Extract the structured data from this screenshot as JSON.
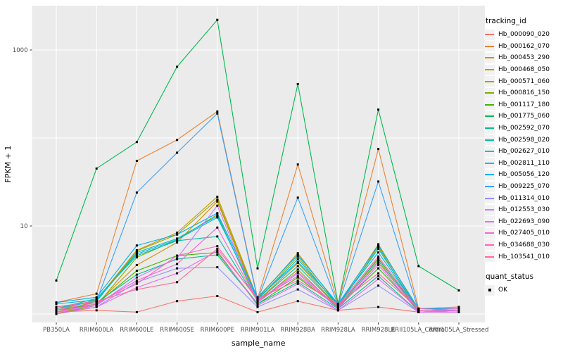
{
  "figure": {
    "axes": {
      "x_label": "sample_name",
      "y_label": "FPKM + 1",
      "y_ticks": [
        {
          "label": "1000",
          "value": 1000
        },
        {
          "label": "10",
          "value": 10
        }
      ],
      "y_gridline_values": [
        1,
        10,
        100,
        1000
      ]
    },
    "legend": {
      "tracking_title": "tracking_id",
      "quant_title": "quant_status",
      "quant_items": [
        {
          "label": "OK",
          "marker": "black-square-icon"
        }
      ]
    },
    "style": {
      "panel_bg": "#EBEBEB",
      "grid_color": "#FFFFFF",
      "key_bg": "#F2F2F2",
      "axis_text_color": "#4D4D4D",
      "title_color": "#000000",
      "point_color": "#000000",
      "tick_color": "#333333"
    }
  },
  "chart_data": {
    "type": "line",
    "x_scale": "categorical",
    "y_scale": "log10",
    "ylim": [
      0.9,
      3000
    ],
    "title": "",
    "xlabel": "sample_name",
    "ylabel": "FPKM + 1",
    "legend_position": "right",
    "grid": true,
    "point_marker": "filled-square",
    "quant_status": "OK",
    "categories": [
      "PB350LA",
      "RRIM600LA",
      "RRIM600LE",
      "RRIM600SE",
      "RRIM600PE",
      "RRIM901LA",
      "RRIM928BA",
      "RRIM928LA",
      "RRIM928LE",
      "RRII105LA_Control",
      "RRII105LA_Stressed"
    ],
    "series": [
      {
        "name": "Hb_000090_020",
        "color": "#F8766D",
        "values": [
          1.05,
          1.1,
          1.05,
          1.4,
          1.6,
          1.05,
          1.4,
          1.1,
          1.2,
          1.05,
          1.1
        ]
      },
      {
        "name": "Hb_000162_070",
        "color": "#EA8331",
        "values": [
          1.35,
          1.7,
          55,
          95,
          200,
          1.5,
          50,
          1.3,
          75,
          1.15,
          1.2
        ]
      },
      {
        "name": "Hb_000453_290",
        "color": "#D89000",
        "values": [
          1.0,
          1.3,
          3.6,
          6.5,
          19,
          1.4,
          3.8,
          1.2,
          4.3,
          1.05,
          1.1
        ]
      },
      {
        "name": "Hb_000468_050",
        "color": "#C09B00",
        "values": [
          1.1,
          1.45,
          5.3,
          8.4,
          21.5,
          1.5,
          4.9,
          1.25,
          6.2,
          1.1,
          1.1
        ]
      },
      {
        "name": "Hb_000571_060",
        "color": "#A3A500",
        "values": [
          1.05,
          1.4,
          5.2,
          8.0,
          20,
          1.45,
          4.5,
          1.2,
          5.8,
          1.05,
          1.05
        ]
      },
      {
        "name": "Hb_000816_150",
        "color": "#7CAE00",
        "values": [
          1.0,
          1.25,
          4.4,
          7.0,
          13.5,
          1.35,
          3.2,
          1.15,
          4.0,
          1.05,
          1.05
        ]
      },
      {
        "name": "Hb_001117_180",
        "color": "#39B600",
        "values": [
          1.1,
          1.3,
          3.1,
          4.6,
          5.0,
          1.3,
          2.6,
          1.2,
          3.3,
          1.1,
          1.1
        ]
      },
      {
        "name": "Hb_001775_060",
        "color": "#00BB4E",
        "values": [
          2.4,
          45,
          90,
          645,
          2200,
          3.3,
          410,
          1.3,
          210,
          3.5,
          1.85
        ]
      },
      {
        "name": "Hb_002592_070",
        "color": "#00C087",
        "values": [
          1.1,
          1.35,
          2.8,
          4.2,
          4.7,
          1.3,
          2.3,
          1.15,
          2.7,
          1.05,
          1.05
        ]
      },
      {
        "name": "Hb_002598_020",
        "color": "#00C1A3",
        "values": [
          1.15,
          1.5,
          4.6,
          6.8,
          7.6,
          1.4,
          3.5,
          1.2,
          4.2,
          1.1,
          1.1
        ]
      },
      {
        "name": "Hb_002627_010",
        "color": "#00BFC4",
        "values": [
          1.2,
          1.4,
          5.0,
          7.2,
          13,
          1.45,
          4.2,
          1.25,
          5.5,
          1.1,
          1.1
        ]
      },
      {
        "name": "Hb_002811_110",
        "color": "#00BAE0",
        "values": [
          1.3,
          1.45,
          4.8,
          7.0,
          12.5,
          1.5,
          3.9,
          1.3,
          5.0,
          1.1,
          1.15
        ]
      },
      {
        "name": "Hb_005056_120",
        "color": "#00B0F6",
        "values": [
          1.35,
          1.55,
          6.0,
          8.0,
          14,
          1.55,
          4.7,
          1.3,
          6.0,
          1.15,
          1.15
        ]
      },
      {
        "name": "Hb_009225_070",
        "color": "#35A2FF",
        "values": [
          1.15,
          1.4,
          24,
          68,
          190,
          1.45,
          21,
          1.25,
          32,
          1.1,
          1.15
        ]
      },
      {
        "name": "Hb_011314_010",
        "color": "#9590FF",
        "values": [
          1.0,
          1.2,
          2.3,
          3.3,
          3.4,
          1.2,
          1.9,
          1.1,
          2.1,
          1.05,
          1.05
        ]
      },
      {
        "name": "Hb_012553_030",
        "color": "#C77CFF",
        "values": [
          1.05,
          1.25,
          2.6,
          4.3,
          17,
          1.35,
          2.9,
          1.15,
          3.6,
          1.05,
          1.1
        ]
      },
      {
        "name": "Hb_022693_090",
        "color": "#E76BF3",
        "values": [
          1.0,
          1.2,
          2.0,
          2.9,
          5.2,
          1.25,
          2.2,
          1.1,
          2.5,
          1.05,
          1.05
        ]
      },
      {
        "name": "Hb_027405_010",
        "color": "#FA62DB",
        "values": [
          1.05,
          1.3,
          2.4,
          3.7,
          9.6,
          1.4,
          3.0,
          1.2,
          3.8,
          1.1,
          1.1
        ]
      },
      {
        "name": "Hb_034688_030",
        "color": "#FF62BC",
        "values": [
          1.1,
          1.35,
          2.2,
          4.6,
          5.9,
          1.45,
          2.7,
          1.25,
          4.5,
          1.1,
          1.15
        ]
      },
      {
        "name": "Hb_103541_010",
        "color": "#FF6A98",
        "values": [
          1.2,
          1.4,
          1.9,
          2.3,
          5.5,
          1.5,
          2.4,
          1.3,
          2.9,
          1.15,
          1.2
        ]
      }
    ]
  }
}
